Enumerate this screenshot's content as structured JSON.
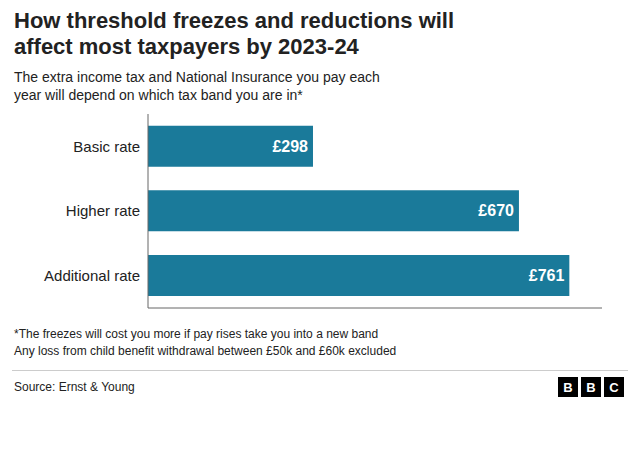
{
  "chart_data": {
    "type": "bar",
    "orientation": "horizontal",
    "title": "How threshold freezes and reductions will\naffect most taxpayers by 2023-24",
    "subtitle": "The extra income tax and National Insurance you pay each\nyear will depend on which tax band you are in*",
    "categories": [
      "Basic rate",
      "Higher rate",
      "Additional rate"
    ],
    "values": [
      298,
      670,
      761
    ],
    "value_labels": [
      "£298",
      "£670",
      "£761"
    ],
    "data_labels": true,
    "color": "#1a7a9a",
    "xlim": [
      0,
      820
    ],
    "tick_labels": "y",
    "grid": false,
    "annotations": [
      "*The freezes will cost you more if pay rises take you into a new band",
      "Any loss from child benefit withdrawal between £50k and £60k excluded",
      "Source: Ernst & Young"
    ],
    "logo": [
      "B",
      "B",
      "C"
    ]
  }
}
